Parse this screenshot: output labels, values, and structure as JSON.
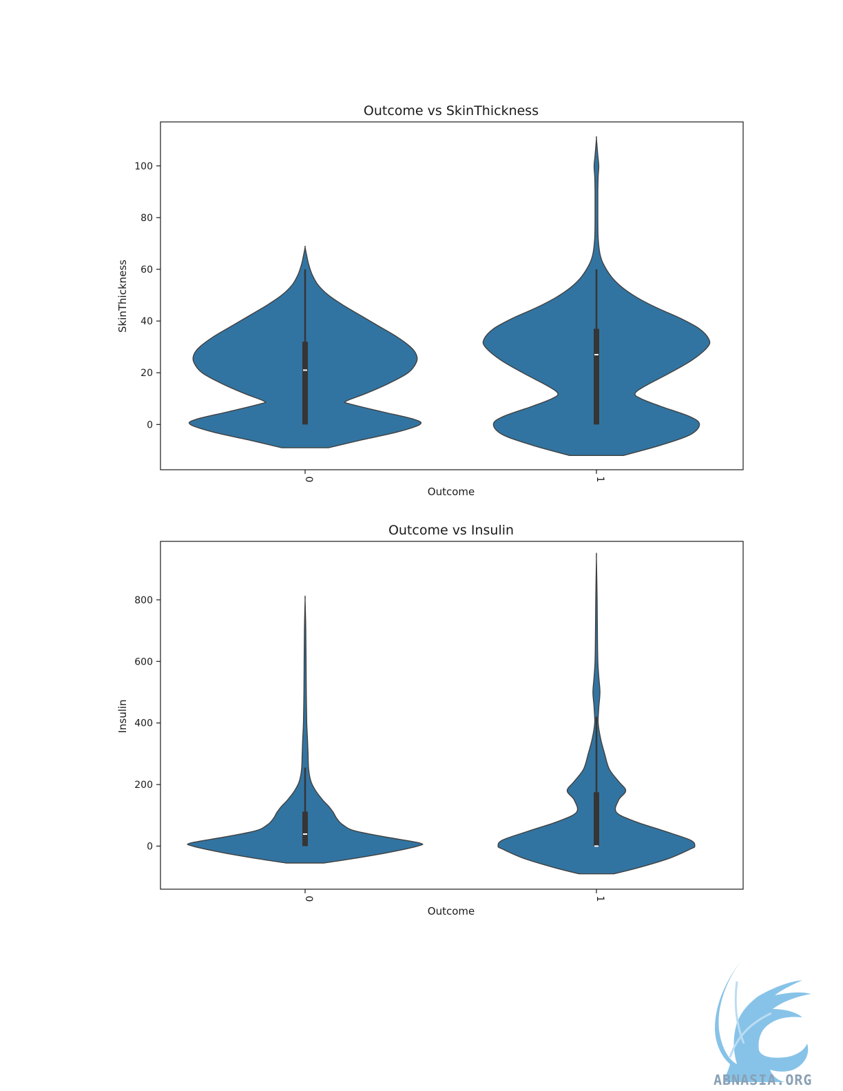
{
  "chart_data": [
    {
      "type": "violin",
      "title": "Outcome vs SkinThickness",
      "xlabel": "Outcome",
      "ylabel": "SkinThickness",
      "categories": [
        "0",
        "1"
      ],
      "yticks": [
        0,
        20,
        40,
        60,
        80,
        100
      ],
      "ylim": [
        -17.5,
        117
      ],
      "grid": false,
      "color": "#3274a1",
      "box_color": "#353535",
      "violins": [
        {
          "category": "0",
          "q1": 0,
          "median": 21,
          "q3": 32,
          "whisker_low": 0,
          "whisker_high": 60,
          "min": -9,
          "max": 68.5,
          "density": [
            [
              -9,
              0.2
            ],
            [
              -6,
              0.48
            ],
            [
              -3,
              0.78
            ],
            [
              0,
              0.98
            ],
            [
              2,
              0.93
            ],
            [
              5,
              0.65
            ],
            [
              8,
              0.38
            ],
            [
              9,
              0.35
            ],
            [
              12,
              0.52
            ],
            [
              16,
              0.72
            ],
            [
              20,
              0.88
            ],
            [
              24,
              0.95
            ],
            [
              27,
              0.95
            ],
            [
              30,
              0.9
            ],
            [
              34,
              0.78
            ],
            [
              38,
              0.63
            ],
            [
              42,
              0.48
            ],
            [
              46,
              0.33
            ],
            [
              50,
              0.2
            ],
            [
              54,
              0.11
            ],
            [
              58,
              0.06
            ],
            [
              62,
              0.03
            ],
            [
              65,
              0.015
            ],
            [
              68.5,
              0
            ]
          ]
        },
        {
          "category": "1",
          "q1": 0,
          "median": 27,
          "q3": 37,
          "whisker_low": 0,
          "whisker_high": 60,
          "min": -12,
          "max": 110.5,
          "density": [
            [
              -12,
              0.23
            ],
            [
              -8,
              0.55
            ],
            [
              -4,
              0.8
            ],
            [
              0,
              0.88
            ],
            [
              3,
              0.8
            ],
            [
              7,
              0.55
            ],
            [
              10,
              0.38
            ],
            [
              12,
              0.33
            ],
            [
              15,
              0.42
            ],
            [
              20,
              0.63
            ],
            [
              25,
              0.82
            ],
            [
              30,
              0.95
            ],
            [
              33,
              0.96
            ],
            [
              37,
              0.88
            ],
            [
              41,
              0.72
            ],
            [
              45,
              0.52
            ],
            [
              49,
              0.35
            ],
            [
              53,
              0.22
            ],
            [
              57,
              0.13
            ],
            [
              62,
              0.06
            ],
            [
              66,
              0.03
            ],
            [
              72,
              0.015
            ],
            [
              80,
              0.012
            ],
            [
              90,
              0.012
            ],
            [
              96,
              0.015
            ],
            [
              100,
              0.02
            ],
            [
              104,
              0.012
            ],
            [
              110.5,
              0
            ]
          ]
        }
      ]
    },
    {
      "type": "violin",
      "title": "Outcome vs Insulin",
      "xlabel": "Outcome",
      "ylabel": "Insulin",
      "categories": [
        "0",
        "1"
      ],
      "yticks": [
        0,
        200,
        400,
        600,
        800
      ],
      "ylim": [
        -140,
        990
      ],
      "grid": false,
      "color": "#3274a1",
      "box_color": "#353535",
      "violins": [
        {
          "category": "0",
          "q1": 0,
          "median": 39,
          "q3": 112,
          "whisker_low": 0,
          "whisker_high": 255,
          "min": -55,
          "max": 800,
          "density": [
            [
              -55,
              0.16
            ],
            [
              -40,
              0.42
            ],
            [
              -20,
              0.72
            ],
            [
              0,
              0.96
            ],
            [
              10,
              0.98
            ],
            [
              30,
              0.68
            ],
            [
              50,
              0.42
            ],
            [
              70,
              0.32
            ],
            [
              90,
              0.27
            ],
            [
              110,
              0.24
            ],
            [
              130,
              0.2
            ],
            [
              150,
              0.15
            ],
            [
              180,
              0.09
            ],
            [
              210,
              0.05
            ],
            [
              250,
              0.03
            ],
            [
              300,
              0.025
            ],
            [
              350,
              0.02
            ],
            [
              400,
              0.014
            ],
            [
              500,
              0.01
            ],
            [
              600,
              0.008
            ],
            [
              700,
              0.006
            ],
            [
              800,
              0
            ]
          ]
        },
        {
          "category": "1",
          "q1": 0,
          "median": 0,
          "q3": 175,
          "whisker_low": 0,
          "whisker_high": 420,
          "min": -90,
          "max": 935,
          "density": [
            [
              -90,
              0.15
            ],
            [
              -70,
              0.36
            ],
            [
              -40,
              0.62
            ],
            [
              -10,
              0.8
            ],
            [
              0,
              0.84
            ],
            [
              20,
              0.8
            ],
            [
              50,
              0.57
            ],
            [
              80,
              0.33
            ],
            [
              110,
              0.17
            ],
            [
              150,
              0.19
            ],
            [
              180,
              0.25
            ],
            [
              210,
              0.19
            ],
            [
              250,
              0.11
            ],
            [
              300,
              0.07
            ],
            [
              350,
              0.035
            ],
            [
              400,
              0.015
            ],
            [
              450,
              0.02
            ],
            [
              500,
              0.03
            ],
            [
              550,
              0.02
            ],
            [
              600,
              0.012
            ],
            [
              700,
              0.008
            ],
            [
              800,
              0.006
            ],
            [
              935,
              0
            ]
          ]
        }
      ]
    }
  ],
  "watermark": {
    "text": "ABNASIA.ORG"
  }
}
